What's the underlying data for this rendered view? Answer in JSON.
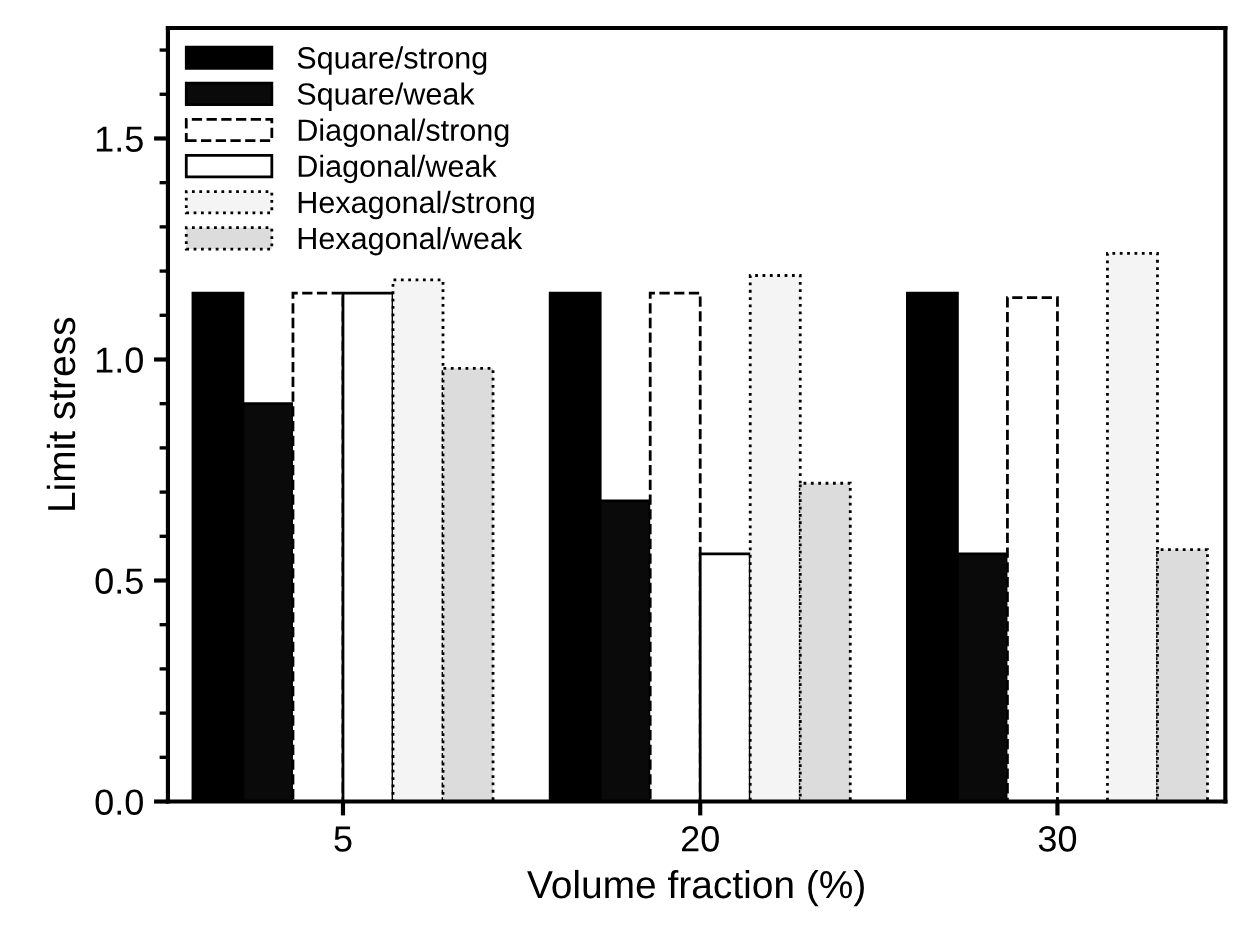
{
  "chart_data": {
    "type": "bar",
    "xlabel": "Volume fraction (%)",
    "ylabel": "Limit stress",
    "categories": [
      "5",
      "20",
      "30"
    ],
    "series": [
      {
        "name": "Square/strong",
        "color": "#000000",
        "line_style": "solid",
        "values": [
          1.15,
          1.15,
          1.15
        ]
      },
      {
        "name": "Square/weak",
        "color": "#0a0a0a",
        "line_style": "solid",
        "values": [
          0.9,
          0.68,
          0.56
        ]
      },
      {
        "name": "Diagonal/strong",
        "color": "#ffffff",
        "line_style": "dashed",
        "values": [
          1.15,
          1.15,
          1.14
        ]
      },
      {
        "name": "Diagonal/weak",
        "color": "#ffffff",
        "line_style": "solid",
        "values": [
          1.15,
          0.56,
          null
        ]
      },
      {
        "name": "Hexagonal/strong",
        "color": "#f4f4f4",
        "line_style": "dotted",
        "values": [
          1.18,
          1.19,
          1.24
        ]
      },
      {
        "name": "Hexagonal/weak",
        "color": "#dcdcdc",
        "line_style": "dotted",
        "values": [
          0.98,
          0.72,
          0.57
        ]
      }
    ],
    "ylim": [
      0,
      1.75
    ],
    "yticks": [
      {
        "value": 0,
        "label": "0.0"
      },
      0.5,
      {
        "value": 1,
        "label": "1.0"
      },
      1.5
    ],
    "grid": false,
    "legend": "top left"
  }
}
